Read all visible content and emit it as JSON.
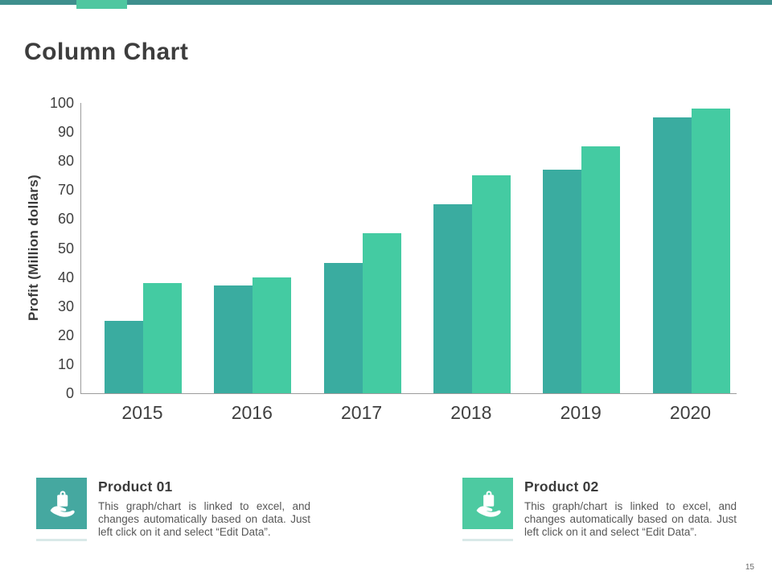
{
  "header": {
    "title": "Column Chart"
  },
  "accent": {
    "top_bar_dark": "#3e8f8d",
    "top_bar_light": "#4fc7a0"
  },
  "chart_data": {
    "type": "bar",
    "title": "",
    "categories": [
      "2015",
      "2016",
      "2017",
      "2018",
      "2019",
      "2020"
    ],
    "series": [
      {
        "name": "Product 01",
        "color": "#3aaca0",
        "values": [
          25,
          37,
          45,
          65,
          77,
          95
        ]
      },
      {
        "name": "Product 02",
        "color": "#44cba2",
        "values": [
          38,
          40,
          55,
          75,
          85,
          98
        ]
      }
    ],
    "xlabel": "",
    "ylabel": "Profit  (Million dollars)",
    "ylim": [
      0,
      100
    ],
    "ytick_step": 10,
    "grid": false,
    "legend_position": "bottom-cards",
    "axis_color": "#9c9c9c"
  },
  "legend_cards": [
    {
      "title": "Product 01",
      "icon": "hand-holding-bag-icon",
      "color": "#45a8a0",
      "description": "This graph/chart is linked to excel, and changes automatically based on data. Just left click on it and select “Edit Data”."
    },
    {
      "title": "Product 02",
      "icon": "hand-holding-bag-icon",
      "color": "#4dcaa1",
      "description": "This graph/chart is linked to excel, and changes automatically based on data. Just left click on it and select “Edit Data”."
    }
  ],
  "footer": {
    "page_number": "15"
  }
}
